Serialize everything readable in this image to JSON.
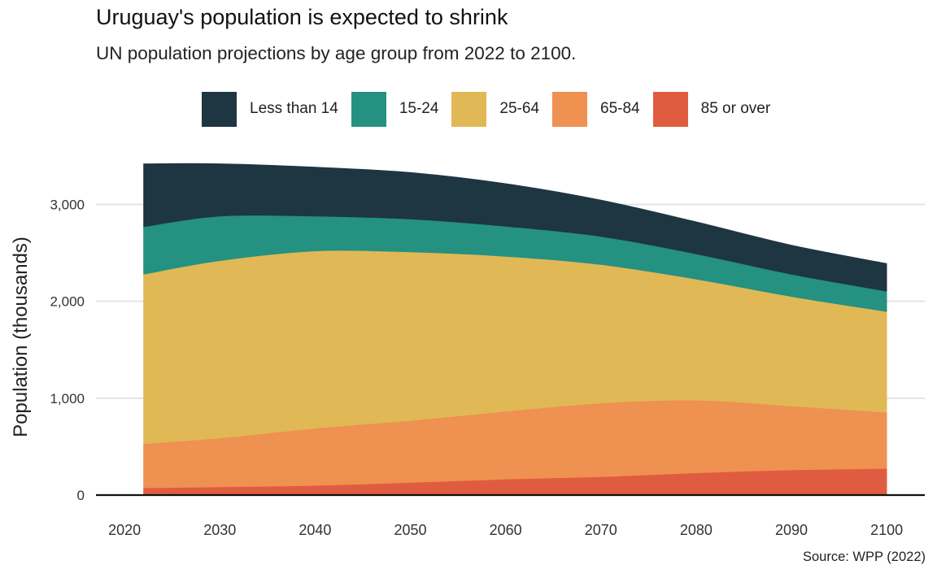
{
  "title": "Uruguay's population is expected to shrink",
  "subtitle": "UN population projections by age group from 2022 to 2100.",
  "source": "Source: WPP (2022)",
  "colors": {
    "background": "#ffffff",
    "gridline": "#e3e3e3",
    "baseline": "#111111"
  },
  "chart_data": {
    "type": "area",
    "stacked": true,
    "title": "Uruguay's population is expected to shrink",
    "subtitle": "UN population projections by age group from 2022 to 2100.",
    "xlabel": "",
    "ylabel": "Population (thousands)",
    "x": [
      2022,
      2030,
      2040,
      2050,
      2060,
      2070,
      2080,
      2090,
      2100
    ],
    "xticks": [
      2020,
      2030,
      2040,
      2050,
      2060,
      2070,
      2080,
      2090,
      2100
    ],
    "yticks": [
      0,
      1000,
      2000,
      3000
    ],
    "ytick_labels": [
      "0",
      "1,000",
      "2,000",
      "3,000"
    ],
    "xlim": [
      2017,
      2104
    ],
    "ylim": [
      0,
      3600
    ],
    "grid": "horizontal",
    "legend_position": "top",
    "series": [
      {
        "name": "85 or over",
        "color": "#e05c40",
        "values": [
          75,
          85,
          100,
          130,
          165,
          190,
          230,
          260,
          275
        ]
      },
      {
        "name": "65-84",
        "color": "#ef9150",
        "values": [
          455,
          505,
          590,
          640,
          700,
          760,
          750,
          660,
          580
        ]
      },
      {
        "name": "25-64",
        "color": "#e1b856",
        "values": [
          1750,
          1830,
          1830,
          1740,
          1600,
          1430,
          1250,
          1130,
          1040
        ]
      },
      {
        "name": "15-24",
        "color": "#249181",
        "values": [
          490,
          460,
          360,
          340,
          310,
          290,
          260,
          230,
          210
        ]
      },
      {
        "name": "Less than 14",
        "color": "#1e3542",
        "values": [
          650,
          540,
          505,
          480,
          440,
          375,
          330,
          300,
          285
        ]
      }
    ]
  }
}
